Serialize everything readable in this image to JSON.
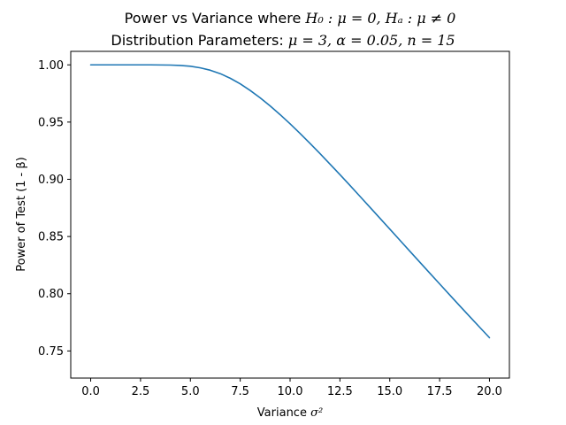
{
  "chart_data": {
    "type": "line",
    "title_line1_prefix": "Power vs Variance where ",
    "title_line1_math": "H₀ : μ = 0, Hₐ : μ ≠ 0",
    "title_line2_prefix": "Distribution Parameters: ",
    "title_line2_math": "μ = 3, α = 0.05, n = 15",
    "xlabel_text": "Variance ",
    "xlabel_math": "σ²",
    "ylabel_text": "Power of Test (1 - β)",
    "xlim": [
      -1.0,
      21.0
    ],
    "ylim": [
      0.7263,
      1.0118
    ],
    "x_ticks": [
      0.0,
      2.5,
      5.0,
      7.5,
      10.0,
      12.5,
      15.0,
      17.5,
      20.0
    ],
    "x_tick_labels": [
      "0.0",
      "2.5",
      "5.0",
      "7.5",
      "10.0",
      "12.5",
      "15.0",
      "17.5",
      "20.0"
    ],
    "y_ticks": [
      0.75,
      0.8,
      0.85,
      0.9,
      0.95,
      1.0
    ],
    "y_tick_labels": [
      "0.75",
      "0.80",
      "0.85",
      "0.90",
      "0.95",
      "1.00"
    ],
    "grid": false,
    "series": [
      {
        "color": "#1f77b4",
        "x": [
          0,
          1,
          2,
          3,
          4,
          4.5,
          5,
          5.5,
          6,
          6.5,
          7,
          7.5,
          8,
          8.5,
          9,
          9.5,
          10,
          10.5,
          11,
          11.5,
          12,
          12.5,
          13,
          13.5,
          14,
          14.5,
          15,
          15.5,
          16,
          16.5,
          17,
          17.5,
          18,
          18.5,
          19,
          19.5,
          20
        ],
        "y": [
          1.0,
          1.0,
          1.0,
          1.0,
          0.9998,
          0.9995,
          0.9988,
          0.9974,
          0.9953,
          0.9923,
          0.9883,
          0.9834,
          0.9776,
          0.9712,
          0.9641,
          0.9565,
          0.9485,
          0.9401,
          0.9314,
          0.9225,
          0.9133,
          0.9041,
          0.8947,
          0.8852,
          0.8757,
          0.8661,
          0.8565,
          0.8469,
          0.8373,
          0.8277,
          0.8181,
          0.8086,
          0.7991,
          0.7896,
          0.7802,
          0.7709,
          0.7616
        ]
      }
    ]
  }
}
